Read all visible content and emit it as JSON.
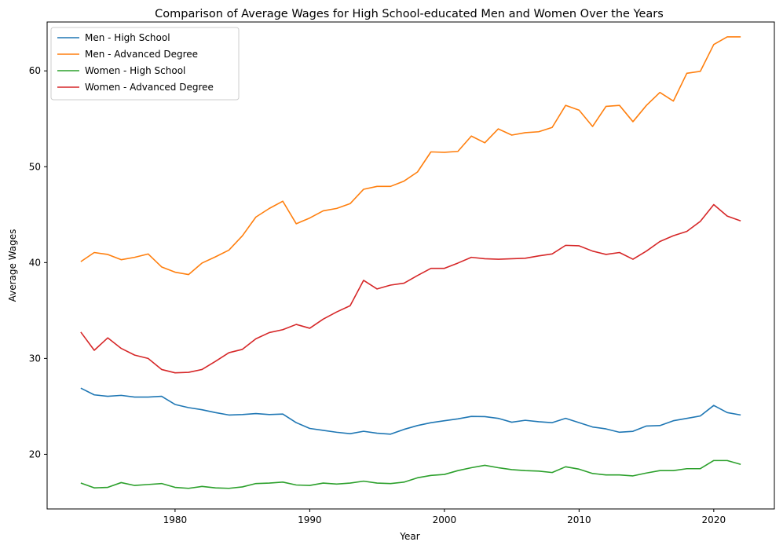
{
  "chart_data": {
    "type": "line",
    "title": "Comparison of Average Wages for High School-educated Men and Women Over the Years",
    "xlabel": "Year",
    "ylabel": "Average Wages",
    "xlim": [
      1970.5,
      2024.5
    ],
    "ylim": [
      14.3,
      65.1
    ],
    "xticks": [
      1980,
      1990,
      2000,
      2010,
      2020
    ],
    "yticks": [
      20,
      30,
      40,
      50,
      60
    ],
    "grid": false,
    "legend_position": "top-left",
    "x": [
      1973,
      1974,
      1975,
      1976,
      1977,
      1978,
      1979,
      1980,
      1981,
      1982,
      1983,
      1984,
      1985,
      1986,
      1987,
      1988,
      1989,
      1990,
      1991,
      1992,
      1993,
      1994,
      1995,
      1996,
      1997,
      1998,
      1999,
      2000,
      2001,
      2002,
      2003,
      2004,
      2005,
      2006,
      2007,
      2008,
      2009,
      2010,
      2011,
      2012,
      2013,
      2014,
      2015,
      2016,
      2017,
      2018,
      2019,
      2020,
      2021,
      2022
    ],
    "series": [
      {
        "name": "Men - High School",
        "color": "#1f77b4",
        "values": [
          26.9,
          26.2,
          26.05,
          26.15,
          25.97,
          25.97,
          26.05,
          25.2,
          24.87,
          24.65,
          24.35,
          24.1,
          24.15,
          24.25,
          24.15,
          24.2,
          23.3,
          22.7,
          22.5,
          22.3,
          22.15,
          22.4,
          22.2,
          22.1,
          22.6,
          23.0,
          23.3,
          23.5,
          23.7,
          23.95,
          23.93,
          23.75,
          23.35,
          23.55,
          23.4,
          23.3,
          23.75,
          23.3,
          22.85,
          22.65,
          22.3,
          22.4,
          22.95,
          23.0,
          23.5,
          23.75,
          24.0,
          25.1,
          24.35,
          24.1
        ]
      },
      {
        "name": "Men - Advanced Degree",
        "color": "#ff7f0e",
        "values": [
          40.1,
          41.05,
          40.85,
          40.3,
          40.55,
          40.9,
          39.55,
          39.0,
          38.75,
          39.95,
          40.6,
          41.3,
          42.8,
          44.75,
          45.65,
          46.4,
          44.05,
          44.65,
          45.4,
          45.65,
          46.15,
          47.65,
          47.95,
          47.95,
          48.5,
          49.45,
          51.55,
          51.5,
          51.6,
          53.2,
          52.5,
          53.95,
          53.3,
          53.55,
          53.65,
          54.1,
          56.4,
          55.9,
          54.2,
          56.3,
          56.4,
          54.7,
          56.4,
          57.75,
          56.85,
          59.75,
          59.95,
          62.75,
          63.55,
          63.55
        ]
      },
      {
        "name": "Women - High School",
        "color": "#2ca02c",
        "values": [
          17.0,
          16.5,
          16.55,
          17.05,
          16.75,
          16.85,
          16.95,
          16.55,
          16.45,
          16.65,
          16.5,
          16.45,
          16.6,
          16.95,
          17.0,
          17.1,
          16.8,
          16.75,
          17.0,
          16.9,
          17.0,
          17.2,
          17.0,
          16.95,
          17.1,
          17.55,
          17.8,
          17.9,
          18.3,
          18.6,
          18.85,
          18.6,
          18.4,
          18.3,
          18.25,
          18.1,
          18.7,
          18.45,
          18.0,
          17.85,
          17.85,
          17.75,
          18.05,
          18.3,
          18.3,
          18.5,
          18.5,
          19.35,
          19.35,
          18.95
        ]
      },
      {
        "name": "Women - Advanced Degree",
        "color": "#d62728",
        "values": [
          32.75,
          30.85,
          32.15,
          31.05,
          30.35,
          30.0,
          28.85,
          28.5,
          28.55,
          28.85,
          29.7,
          30.6,
          30.95,
          32.05,
          32.7,
          33.0,
          33.55,
          33.15,
          34.1,
          34.85,
          35.5,
          38.15,
          37.25,
          37.65,
          37.85,
          38.65,
          39.4,
          39.4,
          39.95,
          40.55,
          40.4,
          40.35,
          40.4,
          40.45,
          40.7,
          40.9,
          41.8,
          41.75,
          41.2,
          40.85,
          41.05,
          40.35,
          41.2,
          42.2,
          42.8,
          43.25,
          44.3,
          46.05,
          44.85,
          44.35
        ]
      }
    ]
  }
}
